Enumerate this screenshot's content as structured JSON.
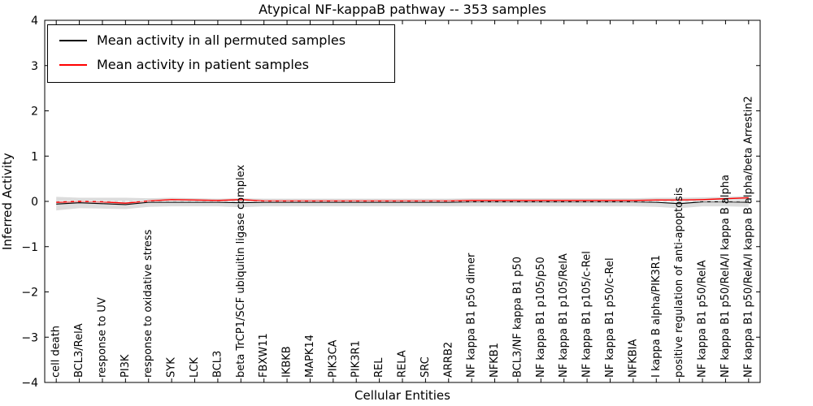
{
  "chart_data": {
    "type": "line",
    "title": "Atypical NF-kappaB pathway -- 353 samples",
    "xlabel": "Cellular Entities",
    "ylabel": "Inferred Activity",
    "ylim": [
      -4,
      4
    ],
    "grid": false,
    "legend_position": "upper left",
    "yticks": [
      -4,
      -3,
      -2,
      -1,
      0,
      1,
      2,
      3,
      4
    ],
    "ytick_labels": [
      "−4",
      "−3",
      "−2",
      "−1",
      "0",
      "1",
      "2",
      "3",
      "4"
    ],
    "categories": [
      "cell death",
      "BCL3/RelA",
      "response to UV",
      "PI3K",
      "response to oxidative stress",
      "SYK",
      "LCK",
      "BCL3",
      "beta TrCP1/SCF ubiquitin ligase complex",
      "FBXW11",
      "IKBKB",
      "MAPK14",
      "PIK3CA",
      "PIK3R1",
      "REL",
      "RELA",
      "SRC",
      "ARRB2",
      "NF kappa B1 p50 dimer",
      "NFKB1",
      "BCL3/NF kappa B1 p50",
      "NF kappa B1 p105/p50",
      "NF kappa B1 p105/RelA",
      "NF kappa B1 p105/c-Rel",
      "NF kappa B1 p50/c-Rel",
      "NFKBIA",
      "I kappa B alpha/PIK3R1",
      "positive regulation of anti-apoptosis",
      "NF kappa B1 p50/RelA",
      "NF kappa B1 p50/RelA/I kappa B alpha",
      "NF kappa B1 p50/RelA/I kappa B alpha/beta Arrestin2"
    ],
    "series": [
      {
        "name": "Mean activity in all permuted samples",
        "color": "#000000",
        "values": [
          -0.06,
          -0.03,
          -0.05,
          -0.07,
          -0.02,
          -0.02,
          -0.02,
          -0.02,
          -0.03,
          -0.02,
          -0.02,
          -0.02,
          -0.02,
          -0.02,
          -0.02,
          -0.02,
          -0.02,
          -0.02,
          -0.01,
          -0.01,
          -0.01,
          -0.01,
          -0.01,
          -0.01,
          -0.01,
          -0.01,
          -0.02,
          -0.05,
          -0.01,
          -0.01,
          -0.02
        ]
      },
      {
        "name": "Mean activity in patient samples",
        "color": "#ff0000",
        "values": [
          -0.02,
          0.0,
          -0.01,
          -0.04,
          0.01,
          0.04,
          0.03,
          0.02,
          0.04,
          0.01,
          0.01,
          0.01,
          0.01,
          0.01,
          0.01,
          0.01,
          0.01,
          0.01,
          0.02,
          0.02,
          0.02,
          0.02,
          0.02,
          0.02,
          0.02,
          0.02,
          0.03,
          0.03,
          0.04,
          0.06,
          0.08
        ]
      }
    ],
    "band": {
      "name": "permuted-sample-spread",
      "color": "#dcdcdc",
      "upper": [
        0.1,
        0.08,
        0.08,
        0.08,
        0.07,
        0.08,
        0.07,
        0.06,
        0.07,
        0.06,
        0.06,
        0.06,
        0.06,
        0.06,
        0.06,
        0.06,
        0.06,
        0.06,
        0.07,
        0.07,
        0.07,
        0.07,
        0.07,
        0.07,
        0.07,
        0.07,
        0.08,
        0.08,
        0.09,
        0.1,
        0.12
      ],
      "lower": [
        -0.2,
        -0.15,
        -0.16,
        -0.17,
        -0.12,
        -0.11,
        -0.11,
        -0.11,
        -0.13,
        -0.11,
        -0.11,
        -0.11,
        -0.11,
        -0.11,
        -0.11,
        -0.11,
        -0.11,
        -0.11,
        -0.11,
        -0.11,
        -0.11,
        -0.11,
        -0.11,
        -0.11,
        -0.11,
        -0.11,
        -0.12,
        -0.15,
        -0.11,
        -0.11,
        -0.12
      ]
    }
  }
}
